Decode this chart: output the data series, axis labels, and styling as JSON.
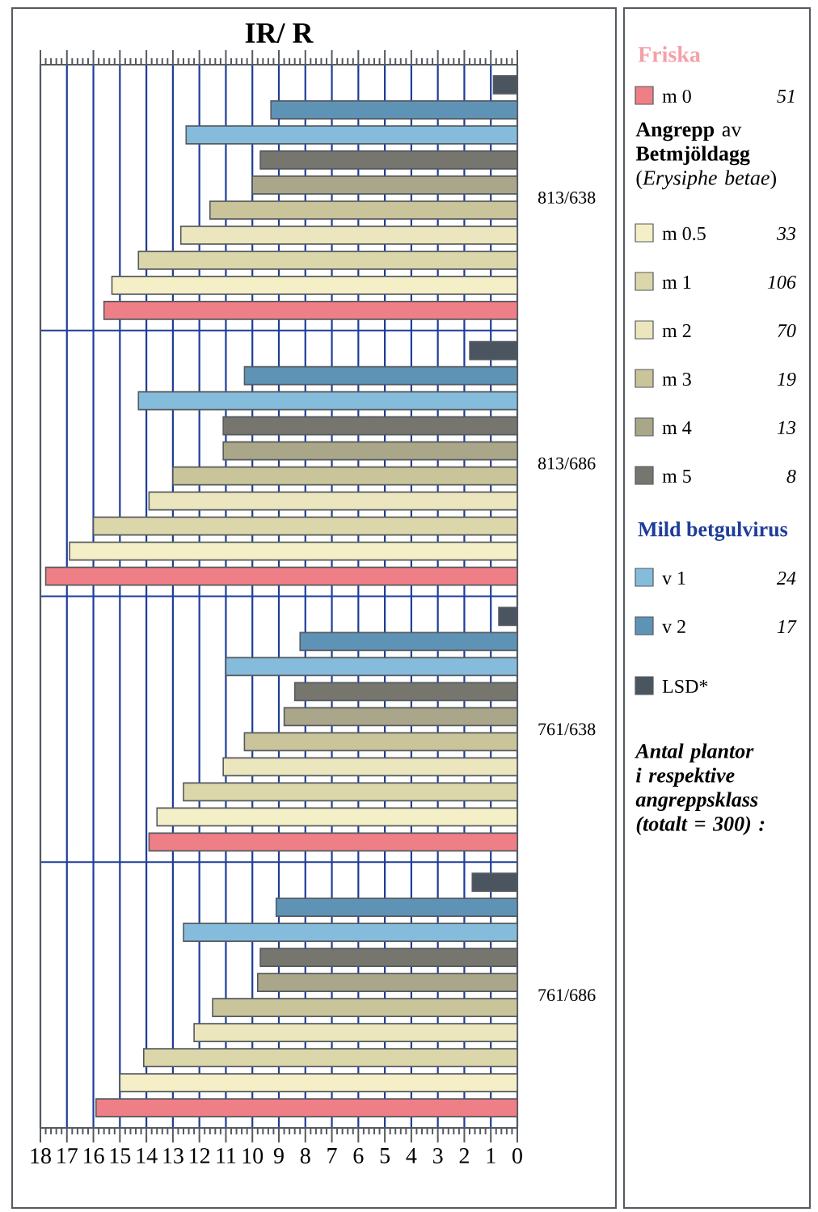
{
  "chart_data": {
    "type": "bar",
    "orientation": "horizontal",
    "title": "IR/ R",
    "categories": [
      "813/638",
      "813/686",
      "761/638",
      "761/686"
    ],
    "series": [
      {
        "name": "m 0",
        "color": "#ef7f86",
        "values": [
          15.6,
          17.8,
          13.9,
          15.9
        ]
      },
      {
        "name": "m 0.5",
        "color": "#f4efc6",
        "values": [
          15.3,
          16.9,
          13.6,
          15.0
        ]
      },
      {
        "name": "m 1",
        "color": "#dcd7aa",
        "values": [
          14.3,
          16.0,
          12.6,
          14.1
        ]
      },
      {
        "name": "m 2",
        "color": "#ebe6bd",
        "values": [
          12.7,
          13.9,
          11.1,
          12.2
        ]
      },
      {
        "name": "m 3",
        "color": "#c9c49a",
        "values": [
          11.6,
          13.0,
          10.3,
          11.5
        ]
      },
      {
        "name": "m 4",
        "color": "#aaa68a",
        "values": [
          10.0,
          11.1,
          8.8,
          9.8
        ]
      },
      {
        "name": "m 5",
        "color": "#76766f",
        "values": [
          9.7,
          11.1,
          8.4,
          9.7
        ]
      },
      {
        "name": "v 1",
        "color": "#86bcdb",
        "values": [
          12.5,
          14.3,
          11.0,
          12.6
        ]
      },
      {
        "name": "v 2",
        "color": "#5f93b5",
        "values": [
          9.3,
          10.3,
          8.2,
          9.1
        ]
      },
      {
        "name": "LSD*",
        "color": "#4a5560",
        "values": [
          0.9,
          1.8,
          0.7,
          1.7
        ]
      }
    ],
    "xlim": [
      18,
      0
    ],
    "xticks": [
      0,
      1,
      2,
      3,
      4,
      5,
      6,
      7,
      8,
      9,
      10,
      11,
      12,
      13,
      14,
      15,
      16,
      17,
      18
    ],
    "grid": true,
    "legend": "right",
    "annotations": [
      "Friska",
      "**Angrepp** av **Betmjöldagg** (*Erysiphe betae*)",
      "Mild betgulvirus",
      "Antal plantor i respektive angreppsklass  (totalt = 300) :",
      "51",
      "33",
      "106",
      "70",
      "19",
      "13",
      "8",
      "24",
      "17"
    ]
  }
}
